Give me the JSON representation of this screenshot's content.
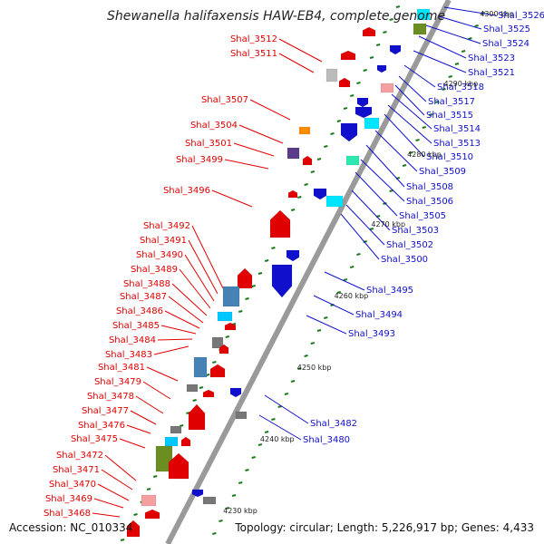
{
  "title": "Shewanella halifaxensis HAW-EB4, complete genome",
  "footer": {
    "accession": "Accession: NC_010334",
    "topology": "Topology: circular; Length: 5,226,917 bp; Genes: 4,433"
  },
  "colors": {
    "left_label": "#e00000",
    "right_label": "#1010cc",
    "backbone": "#9a9a9a",
    "tick": "#1a7a1a"
  },
  "position_ticks": [
    "4230 kbp",
    "4240 kbp",
    "4250 kbp",
    "4260 kbp",
    "4270 kbp",
    "4280 kbp",
    "4290 kbp",
    "4300 kbp"
  ],
  "left_labels": [
    "Shal_3512",
    "Shal_3511",
    "Shal_3507",
    "Shal_3504",
    "Shal_3501",
    "Shal_3499",
    "Shal_3496",
    "Shal_3492",
    "Shal_3491",
    "Shal_3490",
    "Shal_3489",
    "Shal_3488",
    "Shal_3487",
    "Shal_3486",
    "Shal_3485",
    "Shal_3484",
    "Shal_3483",
    "Shal_3481",
    "Shal_3479",
    "Shal_3478",
    "Shal_3477",
    "Shal_3476",
    "Shal_3475",
    "Shal_3472",
    "Shal_3471",
    "Shal_3470",
    "Shal_3469",
    "Shal_3468"
  ],
  "right_labels": [
    "Shal_3526",
    "Shal_3525",
    "Shal_3524",
    "Shal_3523",
    "Shal_3521",
    "Shal_3518",
    "Shal_3517",
    "Shal_3515",
    "Shal_3514",
    "Shal_3513",
    "Shal_3510",
    "Shal_3509",
    "Shal_3508",
    "Shal_3506",
    "Shal_3505",
    "Shal_3503",
    "Shal_3502",
    "Shal_3500",
    "Shal_3495",
    "Shal_3494",
    "Shal_3493",
    "Shal_3482",
    "Shal_3480"
  ]
}
